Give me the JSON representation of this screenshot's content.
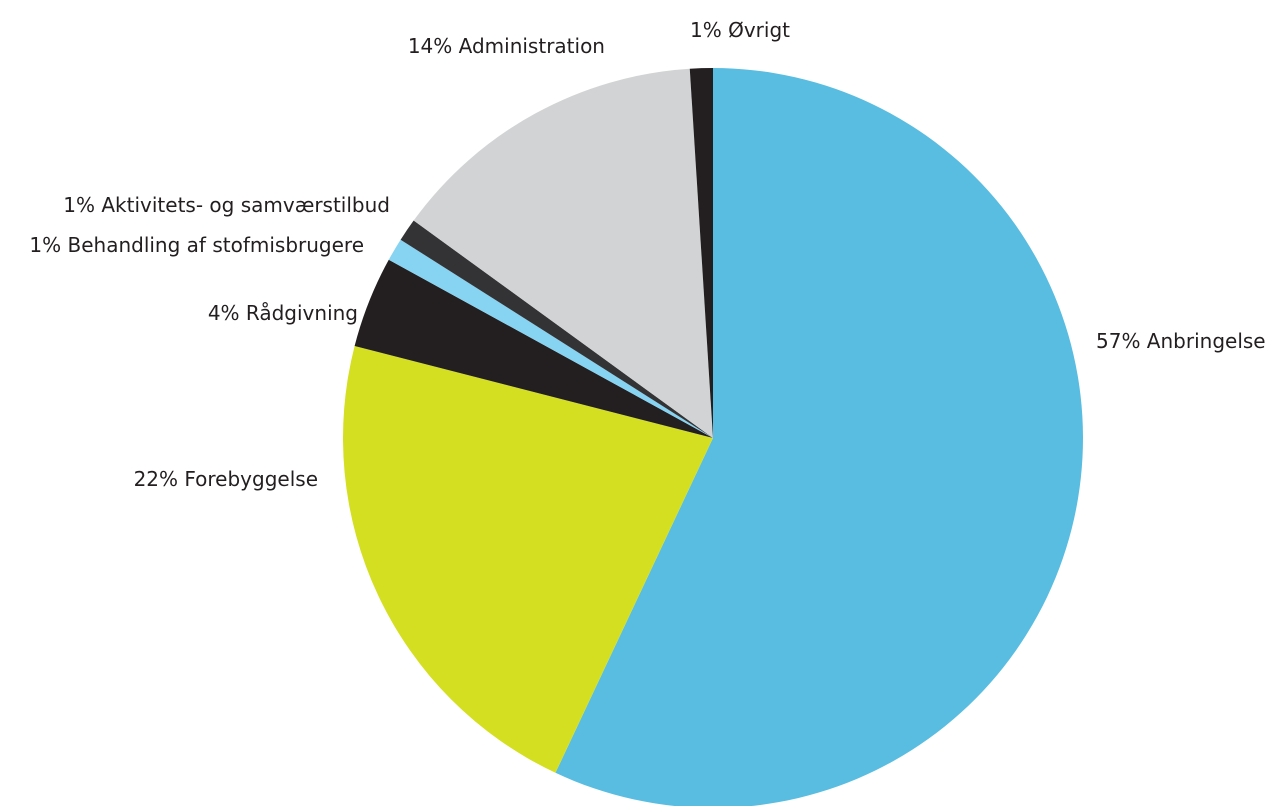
{
  "chart_data": {
    "type": "pie",
    "start_angle_deg": 0,
    "direction": "clockwise",
    "slices": [
      {
        "label": "Anbringelse",
        "value": 57,
        "text": "57% Anbringelse",
        "color": "#58bde0"
      },
      {
        "label": "Forebyggelse",
        "value": 22,
        "text": "22% Forebyggelse",
        "color": "#d4df21"
      },
      {
        "label": "Rådgivning",
        "value": 4,
        "text": "4% Rådgivning",
        "color": "#231f20"
      },
      {
        "label": "Behandling af stofmisbrugere",
        "value": 1,
        "text": "1% Behandling af stofmisbrugere",
        "color": "#87d3f2"
      },
      {
        "label": "Aktivitets- og samværstilbud",
        "value": 1,
        "text": "1% Aktivitets- og samværstilbud",
        "color": "#333335"
      },
      {
        "label": "Administration",
        "value": 14,
        "text": "14% Administration",
        "color": "#d1d3d4"
      },
      {
        "label": "Øvrigt",
        "value": 1,
        "text": "1% Øvrigt",
        "color": "#231f20"
      }
    ]
  }
}
